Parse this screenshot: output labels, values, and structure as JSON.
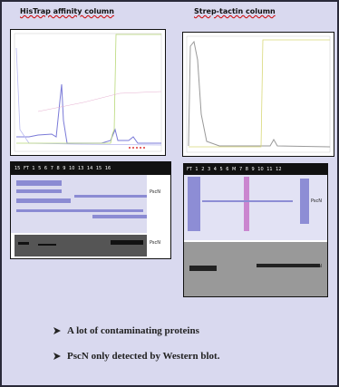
{
  "headers": {
    "left": "HisTrap affinity column",
    "right": "Strep-tactin column"
  },
  "gels": {
    "left": {
      "lanes": "15 FT 1 5 6 7 8 9 10 13 14 15 16",
      "coomassie_tag": "PscN",
      "western_tag": "PscN"
    },
    "right": {
      "lanes": "FT 1 2 3 4 5 6 M 7 8 9 10 11 12",
      "coomassie_tag": "PscN",
      "western_tag": "PscN"
    }
  },
  "bullets": [
    "A lot of contaminating proteins",
    "PscN only detected by Western blot."
  ]
}
